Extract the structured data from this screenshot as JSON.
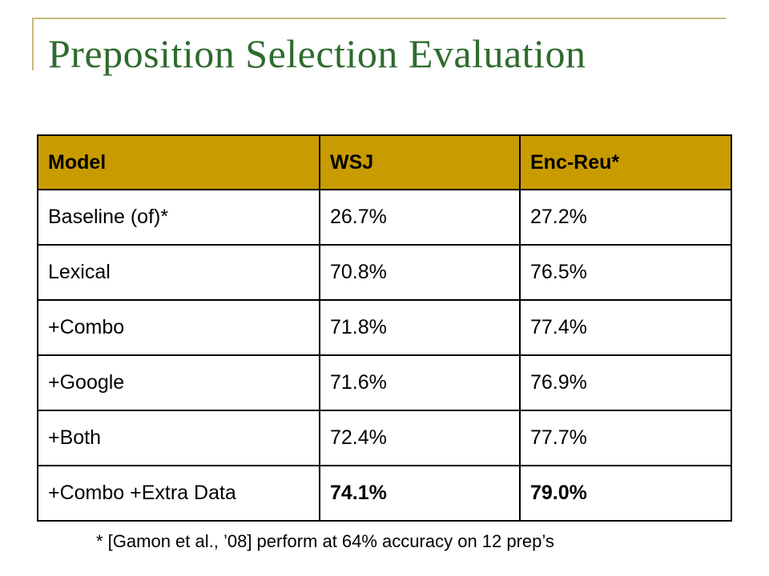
{
  "slide": {
    "title": "Preposition Selection Evaluation",
    "footnote": "* [Gamon et al., ’08] perform at 64% accuracy on 12 prep’s"
  },
  "table": {
    "headers": [
      "Model",
      "WSJ",
      "Enc-Reu*"
    ],
    "rows": [
      [
        "Baseline (of)*",
        "26.7%",
        "27.2%"
      ],
      [
        "Lexical",
        "70.8%",
        "76.5%"
      ],
      [
        "+Combo",
        "71.8%",
        "77.4%"
      ],
      [
        "+Google",
        "71.6%",
        "76.9%"
      ],
      [
        "+Both",
        "72.4%",
        "77.7%"
      ],
      [
        "+Combo +Extra Data",
        "74.1%",
        "79.0%"
      ]
    ],
    "bold_row": 5,
    "bold_cols": [
      1,
      2
    ]
  },
  "colors": {
    "title": "#2e6b2e",
    "header_bg": "#c89b00",
    "frame": "#c8b87a"
  }
}
